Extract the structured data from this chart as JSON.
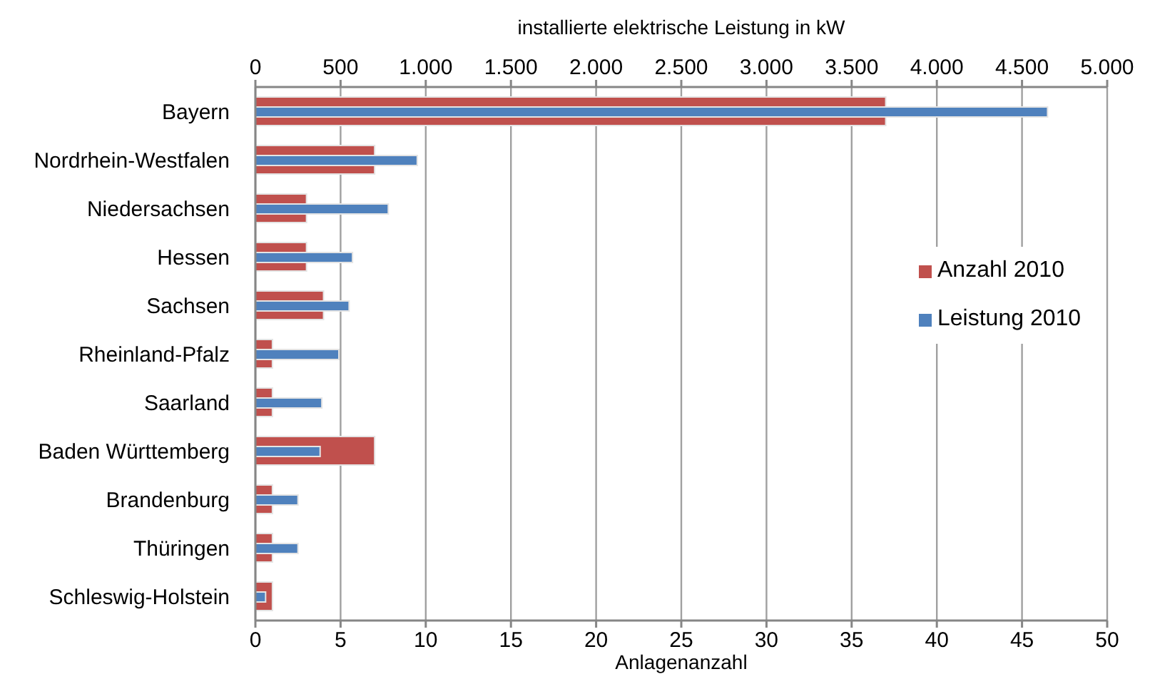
{
  "chart_data": {
    "type": "bar",
    "orientation": "horizontal",
    "categories": [
      "Bayern",
      "Nordrhein-Westfalen",
      "Niedersachsen",
      "Hessen",
      "Sachsen",
      "Rheinland-Pfalz",
      "Saarland",
      "Baden Württemberg",
      "Brandenburg",
      "Thüringen",
      "Schleswig-Holstein"
    ],
    "series": [
      {
        "name": "Anzahl 2010",
        "color": "#c0504d",
        "values": [
          37,
          7,
          3,
          3,
          4,
          1,
          1,
          7,
          1,
          1,
          1
        ]
      },
      {
        "name": "Leistung 2010",
        "color": "#4f81bd",
        "axis": "x2",
        "values": [
          4650,
          950,
          780,
          570,
          550,
          490,
          390,
          380,
          250,
          250,
          60
        ]
      }
    ],
    "xlabel": "Anlagenanzahl",
    "xlim": [
      0,
      50
    ],
    "xticks": [
      0,
      5,
      10,
      15,
      20,
      25,
      30,
      35,
      40,
      45,
      50
    ],
    "x2label": "installierte elektrische Leistung in kW",
    "x2lim": [
      0,
      5000
    ],
    "x2ticks": [
      0,
      500,
      {
        "value": 1000,
        "label": "1.000"
      },
      {
        "value": 1500,
        "label": "1.500"
      },
      {
        "value": 2000,
        "label": "2.000"
      },
      {
        "value": 2500,
        "label": "2.500"
      },
      {
        "value": 3000,
        "label": "3.000"
      },
      {
        "value": 3500,
        "label": "3.500"
      },
      {
        "value": 4000,
        "label": "4.000"
      },
      {
        "value": 4500,
        "label": "4.500"
      },
      {
        "value": 5000,
        "label": "5.000"
      }
    ],
    "grid": "x",
    "legend": "right"
  }
}
